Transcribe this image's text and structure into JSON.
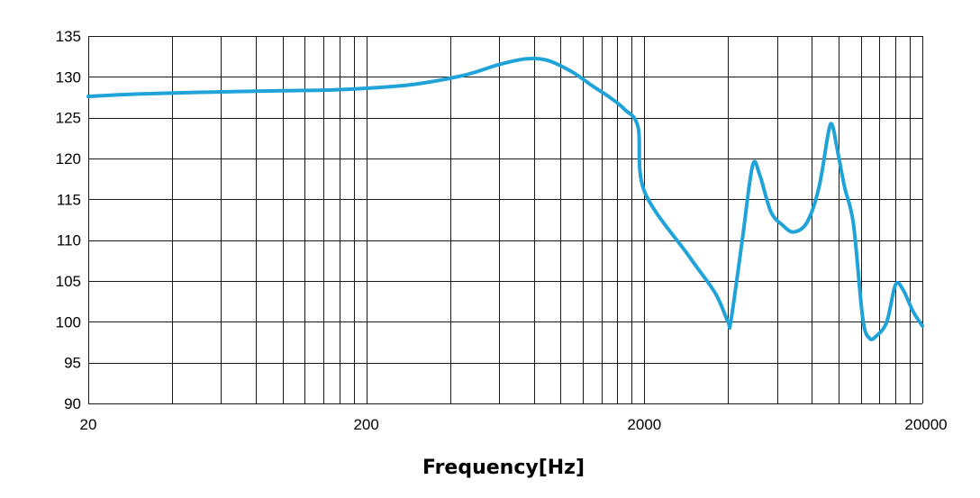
{
  "chart_data": {
    "type": "line",
    "title": "",
    "xlabel": "Frequency[Hz]",
    "ylabel": "",
    "xscale": "log",
    "xlim": [
      20,
      20000
    ],
    "ylim": [
      90,
      135
    ],
    "grid": true,
    "legend": "none",
    "x_ticks": [
      {
        "value": 20,
        "label": "20"
      },
      {
        "value": 200,
        "label": "200"
      },
      {
        "value": 2000,
        "label": "2000"
      },
      {
        "value": 20000,
        "label": "20000"
      }
    ],
    "y_ticks": [
      {
        "value": 135,
        "label": "135"
      },
      {
        "value": 130,
        "label": "130"
      },
      {
        "value": 125,
        "label": "125"
      },
      {
        "value": 120,
        "label": "120"
      },
      {
        "value": 115,
        "label": "115"
      },
      {
        "value": 110,
        "label": "110"
      },
      {
        "value": 105,
        "label": "105"
      },
      {
        "value": 100,
        "label": "100"
      },
      {
        "value": 95,
        "label": "95"
      },
      {
        "value": 90,
        "label": "90"
      }
    ],
    "x_minor_grid": [
      40,
      60,
      80,
      100,
      120,
      140,
      160,
      180,
      400,
      600,
      800,
      1000,
      1200,
      1400,
      1600,
      1800,
      4000,
      6000,
      8000,
      10000,
      12000,
      14000,
      16000,
      18000
    ],
    "series": [
      {
        "color": "#1fa3d9",
        "points": [
          [
            20,
            127.6
          ],
          [
            30,
            127.9
          ],
          [
            50,
            128.1
          ],
          [
            100,
            128.3
          ],
          [
            150,
            128.4
          ],
          [
            200,
            128.6
          ],
          [
            300,
            129.1
          ],
          [
            450,
            130.2
          ],
          [
            600,
            131.5
          ],
          [
            750,
            132.2
          ],
          [
            900,
            132.0
          ],
          [
            1100,
            130.6
          ],
          [
            1300,
            128.9
          ],
          [
            1500,
            127.5
          ],
          [
            1700,
            126.0
          ],
          [
            1900,
            123.8
          ],
          [
            2000,
            116.0
          ],
          [
            2900,
            108.0
          ],
          [
            3600,
            103.5
          ],
          [
            4000,
            100.0
          ],
          [
            4100,
            100.2
          ],
          [
            4500,
            110.0
          ],
          [
            4900,
            119.1
          ],
          [
            5200,
            118.0
          ],
          [
            5700,
            113.5
          ],
          [
            6300,
            111.8
          ],
          [
            6900,
            111.0
          ],
          [
            7700,
            112.2
          ],
          [
            8500,
            116.5
          ],
          [
            9200,
            123.3
          ],
          [
            9500,
            124.0
          ],
          [
            9900,
            121.0
          ],
          [
            10500,
            116.5
          ],
          [
            11300,
            112.0
          ],
          [
            12200,
            100.5
          ],
          [
            12900,
            98.0
          ],
          [
            13700,
            98.3
          ],
          [
            14900,
            100.0
          ],
          [
            16000,
            104.5
          ],
          [
            17000,
            104.0
          ],
          [
            18500,
            101.3
          ],
          [
            20000,
            99.5
          ]
        ]
      }
    ]
  }
}
